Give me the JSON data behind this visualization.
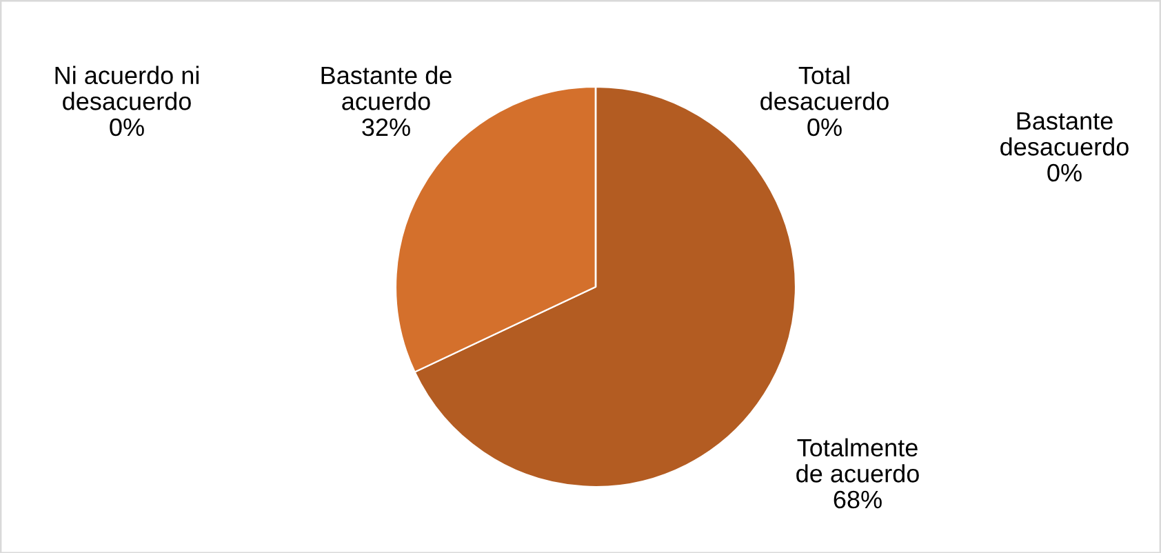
{
  "chart_data": {
    "type": "pie",
    "categories": [
      "Totalmente\nde acuerdo",
      "Bastante de\nacuerdo",
      "Ni acuerdo ni\ndesacuerdo",
      "Total\ndesacuerdo",
      "Bastante\ndesacuerdo"
    ],
    "values": [
      68,
      32,
      0,
      0,
      0
    ],
    "colors": [
      "#b35c22",
      "#d4702c",
      "#8a4a1c",
      "#e0905a",
      "#9c5a2a"
    ],
    "value_labels": [
      "68%",
      "32%",
      "0%",
      "0%",
      "0%"
    ],
    "legend": false
  }
}
